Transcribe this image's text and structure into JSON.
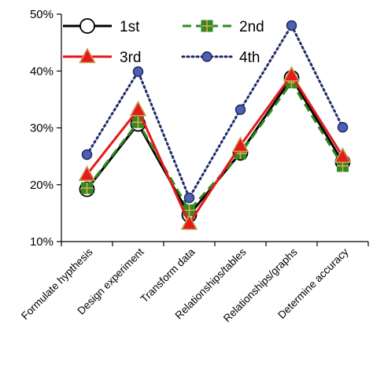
{
  "chart_data": {
    "type": "line",
    "categories": [
      "Formulate hypthesis",
      "Design experiment",
      "Transform data",
      "Relationships/tables",
      "Relationships/graphs",
      "Determine accuracy"
    ],
    "series": [
      {
        "name": "1st",
        "values": [
          19.2,
          30.7,
          14.7,
          25.6,
          38.8,
          24.0
        ],
        "color": "#000000",
        "line": "solid",
        "marker": "open-circle"
      },
      {
        "name": "2nd",
        "values": [
          19.4,
          31.0,
          15.5,
          25.5,
          38.0,
          23.3
        ],
        "color": "#2e8b1e",
        "line": "dashed",
        "marker": "square-plus"
      },
      {
        "name": "3rd",
        "values": [
          21.8,
          33.2,
          13.2,
          26.9,
          39.3,
          25.0
        ],
        "color": "#e41a1c",
        "line": "solid",
        "marker": "triangle"
      },
      {
        "name": "4th",
        "values": [
          25.3,
          39.9,
          17.7,
          33.2,
          48.0,
          30.1
        ],
        "color": "#1f2a6b",
        "line": "dotted",
        "marker": "filled-circle"
      }
    ],
    "ylim": [
      10,
      50
    ],
    "yticks": [
      "10%",
      "20%",
      "30%",
      "40%",
      "50%"
    ],
    "legend": "top-left"
  }
}
